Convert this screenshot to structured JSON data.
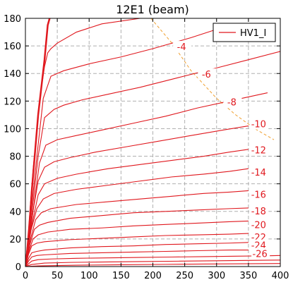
{
  "chart_data": {
    "type": "line",
    "title": "12E1 (beam)",
    "xlabel": "",
    "ylabel": "",
    "xlim": [
      0,
      400
    ],
    "ylim": [
      0,
      180
    ],
    "xticks": [
      0,
      50,
      100,
      150,
      200,
      250,
      300,
      350,
      400
    ],
    "yticks": [
      0,
      20,
      40,
      60,
      80,
      100,
      120,
      140,
      160,
      180
    ],
    "grid": true,
    "legend": {
      "position": "top-right",
      "entries": [
        "HV1_I"
      ]
    },
    "colors": {
      "curve": "#e0181e",
      "boundary": "#f0a030",
      "grid": "#b0b0b0"
    },
    "series": [
      {
        "name": "HV1_I",
        "x": [
          0,
          5,
          10,
          20,
          30,
          35,
          38
        ],
        "y": [
          0,
          20,
          55,
          110,
          150,
          175,
          180
        ]
      },
      {
        "x": [
          0,
          5,
          12,
          22,
          30,
          35,
          40,
          50,
          80,
          120,
          180,
          200
        ],
        "y": [
          0,
          28,
          70,
          120,
          145,
          155,
          158,
          162,
          170,
          176,
          180,
          181
        ]
      },
      {
        "x": [
          0,
          8,
          18,
          28,
          40,
          60,
          100,
          150,
          200,
          260,
          300
        ],
        "y": [
          0,
          35,
          80,
          122,
          138,
          142,
          147,
          152,
          158,
          166,
          172
        ]
      },
      {
        "x": [
          0,
          10,
          20,
          30,
          45,
          60,
          90,
          130,
          180,
          240,
          300,
          350,
          400
        ],
        "y": [
          0,
          38,
          80,
          108,
          114,
          117,
          121,
          125,
          130,
          137,
          144,
          150,
          156
        ]
      },
      {
        "x": [
          0,
          12,
          22,
          32,
          50,
          80,
          120,
          170,
          220,
          270,
          320,
          380
        ],
        "y": [
          0,
          40,
          75,
          88,
          92,
          95,
          99,
          104,
          109,
          115,
          120,
          126
        ]
      },
      {
        "x": [
          0,
          10,
          20,
          30,
          45,
          70,
          110,
          160,
          210,
          260,
          310,
          350
        ],
        "y": [
          0,
          35,
          62,
          72,
          76,
          79,
          83,
          87,
          91,
          95,
          99,
          102
        ]
      },
      {
        "x": [
          0,
          10,
          20,
          30,
          50,
          80,
          130,
          180,
          230,
          280,
          320,
          350
        ],
        "y": [
          0,
          30,
          52,
          60,
          64,
          67,
          71,
          74,
          77,
          80,
          83,
          85
        ]
      },
      {
        "x": [
          0,
          8,
          18,
          28,
          45,
          80,
          130,
          180,
          230,
          280,
          320,
          350
        ],
        "y": [
          0,
          25,
          42,
          49,
          53,
          56,
          59,
          62,
          65,
          67,
          69,
          71
        ]
      },
      {
        "x": [
          0,
          8,
          16,
          25,
          40,
          80,
          130,
          180,
          230,
          280,
          320,
          350
        ],
        "y": [
          0,
          20,
          34,
          39,
          42,
          45,
          47,
          49,
          51,
          53,
          54,
          55
        ]
      },
      {
        "x": [
          0,
          7,
          14,
          22,
          35,
          70,
          120,
          170,
          220,
          270,
          320,
          350
        ],
        "y": [
          0,
          16,
          27,
          30,
          32,
          35,
          37,
          39,
          40,
          41,
          42,
          42.5
        ]
      },
      {
        "x": [
          0,
          6,
          12,
          20,
          35,
          70,
          120,
          170,
          220,
          270,
          320,
          350
        ],
        "y": [
          0,
          12,
          20,
          23,
          25,
          27,
          28,
          29.5,
          30.5,
          31.5,
          32.5,
          33
        ]
      },
      {
        "x": [
          0,
          5,
          10,
          18,
          30,
          70,
          120,
          170,
          220,
          270,
          320,
          350
        ],
        "y": [
          0,
          9,
          15,
          17,
          18,
          19.5,
          20.5,
          21.5,
          22.5,
          23,
          23.5,
          24
        ]
      },
      {
        "x": [
          0,
          5,
          10,
          18,
          30,
          70,
          120,
          170,
          220,
          270,
          320,
          350
        ],
        "y": [
          0,
          6,
          10,
          11,
          12,
          13.5,
          14.5,
          15,
          16,
          16.5,
          17,
          17.5
        ]
      },
      {
        "x": [
          0,
          5,
          10,
          18,
          30,
          70,
          120,
          170,
          220,
          270,
          320,
          350
        ],
        "y": [
          0,
          4,
          7,
          8,
          8.5,
          9.5,
          10,
          10.5,
          11,
          11.5,
          12,
          12
        ]
      },
      {
        "x": [
          0,
          5,
          10,
          20,
          40,
          80,
          130,
          180,
          230,
          280,
          330,
          380,
          400
        ],
        "y": [
          0,
          2,
          4,
          5,
          5.5,
          6,
          6.3,
          6.6,
          6.9,
          7.2,
          7.5,
          7.8,
          8
        ]
      },
      {
        "x": [
          0,
          10,
          30,
          70,
          120,
          180,
          240,
          300,
          360,
          400
        ],
        "y": [
          0,
          1.5,
          2.5,
          3,
          3.3,
          3.6,
          3.9,
          4.2,
          4.5,
          4.7
        ]
      },
      {
        "x": [
          0,
          20,
          80,
          150,
          220,
          300,
          400
        ],
        "y": [
          0,
          0.5,
          1,
          1.3,
          1.6,
          1.9,
          2.2
        ]
      }
    ],
    "boundary": {
      "x": [
        197,
        230,
        260,
        300,
        330,
        360,
        390
      ],
      "y": [
        180,
        162,
        142,
        122,
        110,
        100,
        92
      ]
    },
    "annotations": [
      {
        "text": "-4",
        "x": 245,
        "y": 159
      },
      {
        "text": "-6",
        "x": 284,
        "y": 139
      },
      {
        "text": "-8",
        "x": 324,
        "y": 119
      },
      {
        "text": "-10",
        "x": 366,
        "y": 103
      },
      {
        "text": "-12",
        "x": 366,
        "y": 84
      },
      {
        "text": "-14",
        "x": 366,
        "y": 68
      },
      {
        "text": "-16",
        "x": 366,
        "y": 52
      },
      {
        "text": "-18",
        "x": 366,
        "y": 40
      },
      {
        "text": "-20",
        "x": 366,
        "y": 30
      },
      {
        "text": "-22",
        "x": 366,
        "y": 21
      },
      {
        "text": "-24",
        "x": 366,
        "y": 15
      },
      {
        "text": "-26",
        "x": 368,
        "y": 9
      }
    ]
  }
}
